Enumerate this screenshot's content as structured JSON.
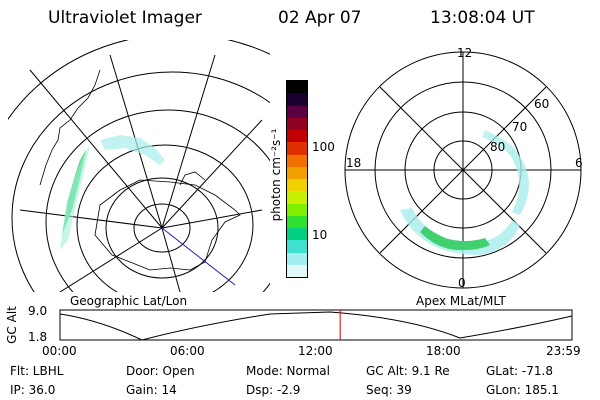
{
  "header": {
    "instrument": "Ultraviolet Imager",
    "date": "02 Apr 07",
    "time": "13:08:04 UT"
  },
  "left_map": {
    "caption": "Geographic Lat/Lon"
  },
  "right_map": {
    "caption": "Apex MLat/MLT",
    "mlt_labels": [
      "12",
      "18",
      "6",
      "0"
    ],
    "lat_labels": [
      "60",
      "70",
      "80"
    ]
  },
  "colorbar": {
    "unit_label": "photon cm⁻²s⁻¹",
    "ticks": [
      "100",
      "10"
    ],
    "colors": [
      "#000000",
      "#1a0030",
      "#5a0040",
      "#900020",
      "#c00000",
      "#e03000",
      "#f07000",
      "#f0a000",
      "#f0d000",
      "#c8f000",
      "#80f000",
      "#30e030",
      "#00d080",
      "#40e0d0",
      "#a0f0f0",
      "#e0f8f8"
    ]
  },
  "timeline": {
    "axis_label": "GC Alt",
    "y_ticks": [
      "9.0",
      "1.8"
    ],
    "x_ticks": [
      "00:00",
      "06:00",
      "12:00",
      "18:00",
      "23:59"
    ],
    "current_fraction": 0.5472,
    "marker_color": "#d00000"
  },
  "status": {
    "filter": "Flt: LBHL",
    "ip": "IP: 36.0",
    "door": "Door: Open",
    "gain": "Gain: 14",
    "mode": "Mode: Normal",
    "dsp": "Dsp:   -2.9",
    "gc_alt": "GC Alt: 9.1 Re",
    "seq": "Seq: 39",
    "glat": "GLat: -71.8",
    "glon": "GLon: 185.1"
  }
}
